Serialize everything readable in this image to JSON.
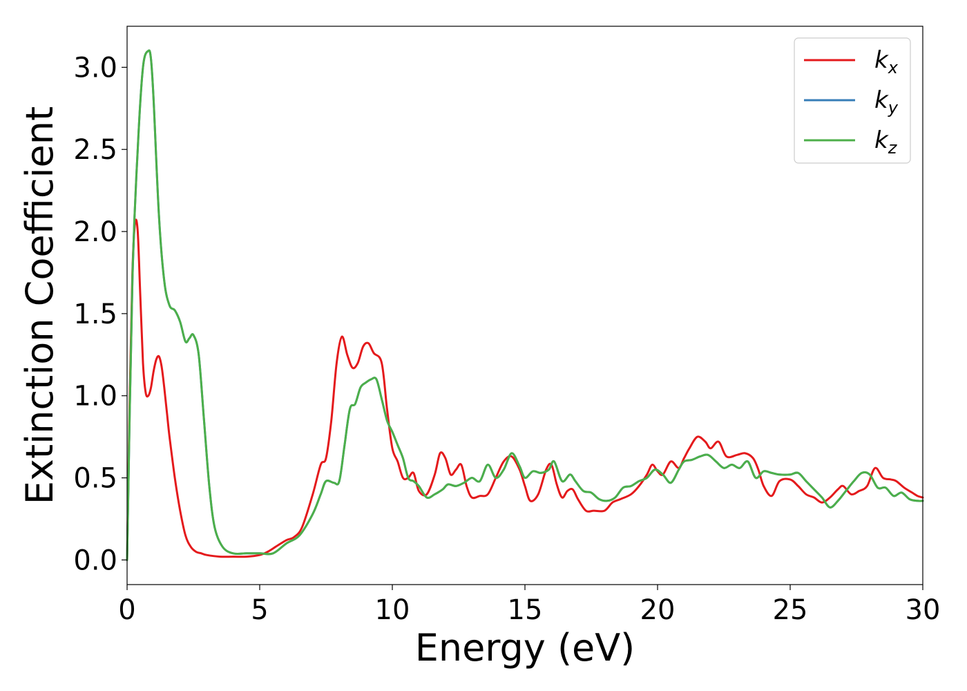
{
  "chart_data": {
    "type": "line",
    "title": "",
    "xlabel": "Energy (eV)",
    "ylabel": "Extinction Coefficient",
    "xlim": [
      0,
      30
    ],
    "ylim": [
      -0.15,
      3.25
    ],
    "xticks": [
      0,
      5,
      10,
      15,
      20,
      25,
      30
    ],
    "xtick_labels": [
      "0",
      "5",
      "10",
      "15",
      "20",
      "25",
      "30"
    ],
    "yticks": [
      0.0,
      0.5,
      1.0,
      1.5,
      2.0,
      2.5,
      3.0
    ],
    "ytick_labels": [
      "0.0",
      "0.5",
      "1.0",
      "1.5",
      "2.0",
      "2.5",
      "3.0"
    ],
    "grid": false,
    "legend_position": "top-right",
    "series": [
      {
        "name": "k_x",
        "legend_main": "k",
        "legend_sub": "x",
        "color": "#e41a1c",
        "x": [
          0.0,
          0.1,
          0.2,
          0.3,
          0.4,
          0.5,
          0.6,
          0.7,
          0.8,
          0.9,
          1.0,
          1.1,
          1.2,
          1.3,
          1.4,
          1.5,
          1.6,
          1.8,
          2.0,
          2.2,
          2.4,
          2.6,
          2.8,
          3.0,
          3.5,
          4.0,
          4.5,
          5.0,
          5.3,
          5.6,
          6.0,
          6.3,
          6.6,
          7.0,
          7.3,
          7.5,
          7.7,
          7.9,
          8.1,
          8.3,
          8.5,
          8.7,
          8.9,
          9.1,
          9.3,
          9.6,
          9.8,
          10.0,
          10.2,
          10.4,
          10.6,
          10.8,
          11.0,
          11.3,
          11.6,
          11.8,
          12.0,
          12.2,
          12.4,
          12.6,
          12.8,
          13.0,
          13.3,
          13.6,
          13.9,
          14.2,
          14.5,
          14.8,
          15.0,
          15.2,
          15.5,
          15.8,
          16.0,
          16.2,
          16.4,
          16.6,
          16.8,
          17.0,
          17.3,
          17.6,
          18.0,
          18.3,
          18.6,
          19.0,
          19.3,
          19.6,
          19.8,
          20.0,
          20.2,
          20.5,
          20.8,
          21.0,
          21.2,
          21.5,
          21.8,
          22.0,
          22.3,
          22.6,
          23.0,
          23.3,
          23.6,
          23.8,
          24.0,
          24.3,
          24.6,
          25.0,
          25.3,
          25.6,
          25.9,
          26.2,
          26.5,
          26.8,
          27.0,
          27.3,
          27.6,
          27.9,
          28.2,
          28.5,
          28.8,
          29.0,
          29.3,
          29.6,
          29.8,
          30.0
        ],
        "y": [
          0.0,
          1.0,
          1.75,
          2.05,
          2.0,
          1.6,
          1.2,
          1.02,
          1.0,
          1.05,
          1.15,
          1.22,
          1.24,
          1.18,
          1.05,
          0.9,
          0.75,
          0.5,
          0.3,
          0.15,
          0.08,
          0.05,
          0.04,
          0.03,
          0.02,
          0.02,
          0.02,
          0.03,
          0.05,
          0.08,
          0.12,
          0.14,
          0.2,
          0.4,
          0.58,
          0.62,
          0.85,
          1.2,
          1.36,
          1.25,
          1.17,
          1.2,
          1.3,
          1.32,
          1.26,
          1.2,
          0.92,
          0.68,
          0.6,
          0.5,
          0.5,
          0.53,
          0.42,
          0.4,
          0.52,
          0.65,
          0.62,
          0.52,
          0.55,
          0.58,
          0.45,
          0.38,
          0.39,
          0.4,
          0.5,
          0.6,
          0.63,
          0.55,
          0.45,
          0.36,
          0.4,
          0.55,
          0.58,
          0.46,
          0.38,
          0.42,
          0.43,
          0.37,
          0.3,
          0.3,
          0.3,
          0.35,
          0.37,
          0.4,
          0.45,
          0.52,
          0.58,
          0.54,
          0.52,
          0.6,
          0.56,
          0.62,
          0.68,
          0.75,
          0.72,
          0.68,
          0.72,
          0.63,
          0.64,
          0.65,
          0.62,
          0.55,
          0.45,
          0.39,
          0.48,
          0.49,
          0.45,
          0.4,
          0.38,
          0.35,
          0.38,
          0.43,
          0.45,
          0.4,
          0.42,
          0.45,
          0.56,
          0.5,
          0.49,
          0.48,
          0.44,
          0.41,
          0.39,
          0.38
        ]
      },
      {
        "name": "k_y",
        "legend_main": "k",
        "legend_sub": "y",
        "color": "#377eb8",
        "x": [
          0.0,
          0.2,
          0.4,
          0.6,
          0.8,
          0.9,
          1.0,
          1.2,
          1.4,
          1.6,
          1.8,
          2.0,
          2.2,
          2.35,
          2.5,
          2.7,
          2.9,
          3.1,
          3.3,
          3.6,
          4.0,
          4.5,
          5.0,
          5.5,
          6.0,
          6.5,
          7.0,
          7.3,
          7.5,
          7.8,
          8.0,
          8.2,
          8.4,
          8.6,
          8.8,
          9.0,
          9.2,
          9.4,
          9.6,
          9.8,
          10.0,
          10.2,
          10.4,
          10.6,
          10.8,
          11.0,
          11.3,
          11.6,
          11.9,
          12.1,
          12.4,
          12.7,
          13.0,
          13.3,
          13.6,
          13.9,
          14.2,
          14.5,
          14.8,
          15.0,
          15.3,
          15.6,
          15.9,
          16.1,
          16.4,
          16.7,
          16.9,
          17.2,
          17.5,
          17.8,
          18.1,
          18.4,
          18.7,
          19.0,
          19.3,
          19.6,
          19.9,
          20.2,
          20.5,
          20.8,
          21.0,
          21.3,
          21.6,
          21.9,
          22.2,
          22.5,
          22.8,
          23.1,
          23.4,
          23.7,
          24.0,
          24.3,
          24.6,
          25.0,
          25.3,
          25.6,
          25.9,
          26.2,
          26.5,
          26.8,
          27.1,
          27.4,
          27.7,
          28.0,
          28.3,
          28.6,
          28.9,
          29.2,
          29.5,
          29.8,
          30.0
        ],
        "y": [
          0.0,
          1.7,
          2.5,
          3.0,
          3.1,
          3.05,
          2.8,
          2.1,
          1.7,
          1.55,
          1.52,
          1.45,
          1.33,
          1.35,
          1.37,
          1.25,
          0.85,
          0.45,
          0.2,
          0.08,
          0.04,
          0.04,
          0.04,
          0.04,
          0.1,
          0.15,
          0.28,
          0.4,
          0.48,
          0.47,
          0.48,
          0.7,
          0.92,
          0.95,
          1.05,
          1.08,
          1.1,
          1.1,
          0.98,
          0.85,
          0.78,
          0.7,
          0.62,
          0.5,
          0.48,
          0.45,
          0.38,
          0.4,
          0.43,
          0.46,
          0.45,
          0.47,
          0.5,
          0.48,
          0.58,
          0.5,
          0.55,
          0.65,
          0.57,
          0.5,
          0.54,
          0.53,
          0.55,
          0.6,
          0.48,
          0.52,
          0.48,
          0.42,
          0.41,
          0.37,
          0.36,
          0.38,
          0.44,
          0.45,
          0.48,
          0.5,
          0.55,
          0.52,
          0.47,
          0.55,
          0.6,
          0.61,
          0.63,
          0.64,
          0.6,
          0.56,
          0.58,
          0.56,
          0.6,
          0.5,
          0.54,
          0.53,
          0.52,
          0.52,
          0.53,
          0.48,
          0.43,
          0.38,
          0.32,
          0.36,
          0.42,
          0.48,
          0.53,
          0.52,
          0.44,
          0.44,
          0.39,
          0.41,
          0.37,
          0.36,
          0.36
        ]
      },
      {
        "name": "k_z",
        "legend_main": "k",
        "legend_sub": "z",
        "color": "#4daf4a",
        "x": [
          0.0,
          0.2,
          0.4,
          0.6,
          0.8,
          0.9,
          1.0,
          1.2,
          1.4,
          1.6,
          1.8,
          2.0,
          2.2,
          2.35,
          2.5,
          2.7,
          2.9,
          3.1,
          3.3,
          3.6,
          4.0,
          4.5,
          5.0,
          5.5,
          6.0,
          6.5,
          7.0,
          7.3,
          7.5,
          7.8,
          8.0,
          8.2,
          8.4,
          8.6,
          8.8,
          9.0,
          9.2,
          9.4,
          9.6,
          9.8,
          10.0,
          10.2,
          10.4,
          10.6,
          10.8,
          11.0,
          11.3,
          11.6,
          11.9,
          12.1,
          12.4,
          12.7,
          13.0,
          13.3,
          13.6,
          13.9,
          14.2,
          14.5,
          14.8,
          15.0,
          15.3,
          15.6,
          15.9,
          16.1,
          16.4,
          16.7,
          16.9,
          17.2,
          17.5,
          17.8,
          18.1,
          18.4,
          18.7,
          19.0,
          19.3,
          19.6,
          19.9,
          20.2,
          20.5,
          20.8,
          21.0,
          21.3,
          21.6,
          21.9,
          22.2,
          22.5,
          22.8,
          23.1,
          23.4,
          23.7,
          24.0,
          24.3,
          24.6,
          25.0,
          25.3,
          25.6,
          25.9,
          26.2,
          26.5,
          26.8,
          27.1,
          27.4,
          27.7,
          28.0,
          28.3,
          28.6,
          28.9,
          29.2,
          29.5,
          29.8,
          30.0
        ],
        "y": [
          0.0,
          1.7,
          2.5,
          3.0,
          3.1,
          3.05,
          2.8,
          2.1,
          1.7,
          1.55,
          1.52,
          1.45,
          1.33,
          1.35,
          1.37,
          1.25,
          0.85,
          0.45,
          0.2,
          0.08,
          0.04,
          0.04,
          0.04,
          0.04,
          0.1,
          0.15,
          0.28,
          0.4,
          0.48,
          0.47,
          0.48,
          0.7,
          0.92,
          0.95,
          1.05,
          1.08,
          1.1,
          1.1,
          0.98,
          0.85,
          0.78,
          0.7,
          0.62,
          0.5,
          0.48,
          0.45,
          0.38,
          0.4,
          0.43,
          0.46,
          0.45,
          0.47,
          0.5,
          0.48,
          0.58,
          0.5,
          0.55,
          0.65,
          0.57,
          0.5,
          0.54,
          0.53,
          0.55,
          0.6,
          0.48,
          0.52,
          0.48,
          0.42,
          0.41,
          0.37,
          0.36,
          0.38,
          0.44,
          0.45,
          0.48,
          0.5,
          0.55,
          0.52,
          0.47,
          0.55,
          0.6,
          0.61,
          0.63,
          0.64,
          0.6,
          0.56,
          0.58,
          0.56,
          0.6,
          0.5,
          0.54,
          0.53,
          0.52,
          0.52,
          0.53,
          0.48,
          0.43,
          0.38,
          0.32,
          0.36,
          0.42,
          0.48,
          0.53,
          0.52,
          0.44,
          0.44,
          0.39,
          0.41,
          0.37,
          0.36,
          0.36
        ]
      }
    ]
  }
}
